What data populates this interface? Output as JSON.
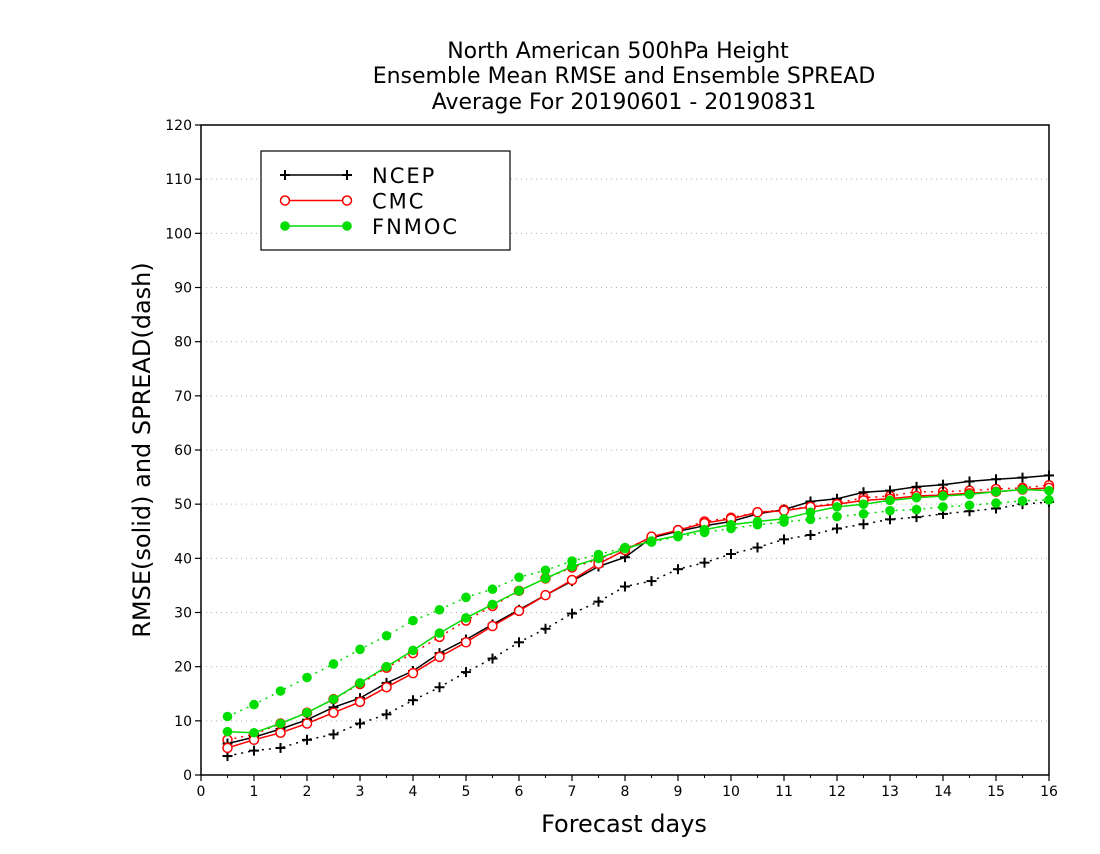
{
  "title_lines": [
    "North American 500hPa Height",
    "Ensemble Mean RMSE and Ensemble SPREAD",
    "Average For 20190601 - 20190831"
  ],
  "chart_data": {
    "type": "line",
    "title": "North American 500hPa Height / Ensemble Mean RMSE and Ensemble SPREAD / Average For 20190601 - 20190831",
    "xlabel": "Forecast days",
    "ylabel": "RMSE(solid) and SPREAD(dash)",
    "xlim": [
      0,
      16
    ],
    "ylim": [
      0,
      120
    ],
    "x_ticks": [
      0,
      1,
      2,
      3,
      4,
      5,
      6,
      7,
      8,
      9,
      10,
      11,
      12,
      13,
      14,
      15,
      16
    ],
    "y_ticks": [
      0,
      10,
      20,
      30,
      40,
      50,
      60,
      70,
      80,
      90,
      100,
      110,
      120
    ],
    "grid": "horizontal dotted",
    "legend_position": "top-left",
    "x": [
      0.5,
      1,
      1.5,
      2,
      2.5,
      3,
      3.5,
      4,
      4.5,
      5,
      5.5,
      6,
      6.5,
      7,
      7.5,
      8,
      8.5,
      9,
      9.5,
      10,
      10.5,
      11,
      11.5,
      12,
      12.5,
      13,
      13.5,
      14,
      14.5,
      15,
      15.5,
      16
    ],
    "series": [
      {
        "name": "NCEP",
        "metric": "RMSE",
        "style": "solid",
        "marker": "plus",
        "color": "#000000",
        "values": [
          5.8,
          7.0,
          8.5,
          10.2,
          12.5,
          14.2,
          17.0,
          19.2,
          22.5,
          25.0,
          27.8,
          30.5,
          33.2,
          35.8,
          38.5,
          40.2,
          43.8,
          45.0,
          46.0,
          46.8,
          48.2,
          49.0,
          50.5,
          51.0,
          52.2,
          52.5,
          53.2,
          53.6,
          54.2,
          54.6,
          54.9,
          55.3
        ]
      },
      {
        "name": "NCEP",
        "metric": "SPREAD",
        "style": "dash",
        "marker": "plus",
        "color": "#000000",
        "values": [
          3.5,
          4.5,
          5.0,
          6.5,
          7.5,
          9.5,
          11.2,
          13.8,
          16.2,
          19.0,
          21.5,
          24.5,
          27.0,
          29.8,
          32.0,
          34.8,
          35.8,
          38.0,
          39.2,
          40.8,
          42.0,
          43.5,
          44.3,
          45.5,
          46.3,
          47.2,
          47.6,
          48.2,
          48.7,
          49.2,
          50.0,
          50.4
        ]
      },
      {
        "name": "CMC",
        "metric": "RMSE",
        "style": "solid",
        "marker": "open-circle",
        "color": "#ff0000",
        "values": [
          5.0,
          6.5,
          7.8,
          9.5,
          11.5,
          13.5,
          16.2,
          18.8,
          21.8,
          24.5,
          27.5,
          30.3,
          33.2,
          36.0,
          39.0,
          41.5,
          44.0,
          45.2,
          46.5,
          47.3,
          48.5,
          48.8,
          49.5,
          50.0,
          50.7,
          51.0,
          51.5,
          51.7,
          52.0,
          52.3,
          52.7,
          53.0
        ]
      },
      {
        "name": "CMC",
        "metric": "SPREAD",
        "style": "dash",
        "marker": "open-circle",
        "color": "#ff0000",
        "values": [
          6.5,
          7.5,
          9.5,
          11.5,
          14.0,
          16.8,
          19.8,
          22.5,
          25.5,
          28.5,
          31.2,
          34.0,
          36.3,
          38.3,
          39.8,
          41.8,
          43.8,
          45.2,
          46.8,
          47.5,
          48.5,
          49.0,
          49.5,
          50.2,
          51.2,
          51.5,
          52.3,
          52.3,
          52.5,
          52.8,
          53.0,
          53.5
        ]
      },
      {
        "name": "FNMOC",
        "metric": "RMSE",
        "style": "solid",
        "marker": "filled-circle",
        "color": "#00dd00",
        "values": [
          8.0,
          7.8,
          9.5,
          11.5,
          14.0,
          17.0,
          20.0,
          23.0,
          26.2,
          29.0,
          31.5,
          34.0,
          36.3,
          38.5,
          40.0,
          41.8,
          43.2,
          44.2,
          45.3,
          46.2,
          46.8,
          47.3,
          48.5,
          49.5,
          50.0,
          50.7,
          51.2,
          51.5,
          51.8,
          52.3,
          52.7,
          52.5
        ]
      },
      {
        "name": "FNMOC",
        "metric": "SPREAD",
        "style": "dash",
        "marker": "filled-circle",
        "color": "#00dd00",
        "values": [
          10.8,
          13.0,
          15.5,
          18.0,
          20.5,
          23.2,
          25.7,
          28.5,
          30.5,
          32.8,
          34.3,
          36.5,
          37.8,
          39.5,
          40.7,
          42.0,
          43.0,
          44.0,
          44.8,
          45.5,
          46.2,
          46.7,
          47.2,
          47.7,
          48.2,
          48.8,
          49.0,
          49.5,
          49.8,
          50.2,
          50.6,
          50.8
        ]
      }
    ]
  }
}
